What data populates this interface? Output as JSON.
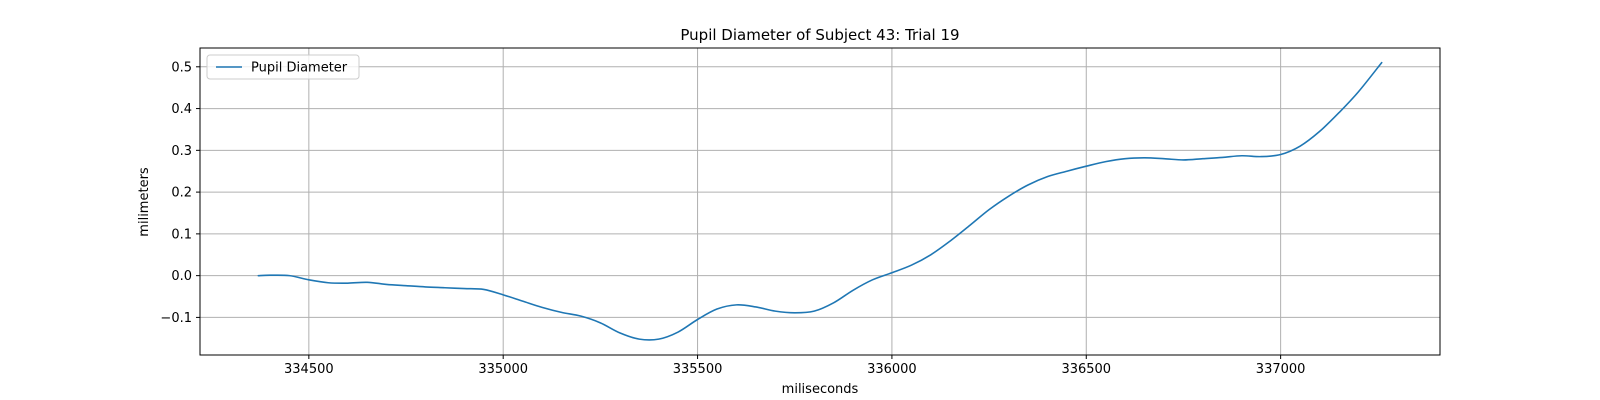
{
  "chart_data": {
    "type": "line",
    "title": "Pupil Diameter of Subject 43: Trial 19",
    "xlabel": "miliseconds",
    "ylabel": "milimeters",
    "xlim": [
      334220,
      337410
    ],
    "ylim": [
      -0.19,
      0.545
    ],
    "xticks": [
      334500,
      335000,
      335500,
      336000,
      336500,
      337000
    ],
    "yticks": [
      -0.1,
      0.0,
      0.1,
      0.2,
      0.3,
      0.4,
      0.5
    ],
    "ytick_labels": [
      "−0.1",
      "0.0",
      "0.1",
      "0.2",
      "0.3",
      "0.4",
      "0.5"
    ],
    "grid": true,
    "legend": {
      "position": "upper-left",
      "entries": [
        "Pupil Diameter"
      ]
    },
    "series": [
      {
        "name": "Pupil Diameter",
        "color": "#1f77b4",
        "x": [
          334370,
          334400,
          334450,
          334500,
          334550,
          334600,
          334650,
          334700,
          334750,
          334800,
          334850,
          334900,
          334950,
          335000,
          335050,
          335100,
          335150,
          335200,
          335250,
          335300,
          335350,
          335400,
          335450,
          335500,
          335550,
          335600,
          335650,
          335700,
          335750,
          335800,
          335850,
          335900,
          335950,
          336000,
          336050,
          336100,
          336150,
          336200,
          336250,
          336300,
          336350,
          336400,
          336450,
          336500,
          336550,
          336600,
          336650,
          336700,
          336750,
          336800,
          336850,
          336900,
          336950,
          337000,
          337050,
          337100,
          337150,
          337200,
          337260
        ],
        "values": [
          0.0,
          0.001,
          0.0,
          -0.01,
          -0.017,
          -0.018,
          -0.016,
          -0.021,
          -0.024,
          -0.027,
          -0.029,
          -0.031,
          -0.033,
          -0.046,
          -0.061,
          -0.076,
          -0.088,
          -0.097,
          -0.113,
          -0.137,
          -0.152,
          -0.152,
          -0.135,
          -0.105,
          -0.08,
          -0.07,
          -0.075,
          -0.085,
          -0.089,
          -0.085,
          -0.065,
          -0.035,
          -0.01,
          0.007,
          0.025,
          0.05,
          0.083,
          0.12,
          0.158,
          0.19,
          0.217,
          0.237,
          0.25,
          0.262,
          0.273,
          0.28,
          0.282,
          0.28,
          0.277,
          0.28,
          0.283,
          0.287,
          0.285,
          0.29,
          0.31,
          0.345,
          0.39,
          0.44,
          0.51
        ]
      }
    ]
  }
}
